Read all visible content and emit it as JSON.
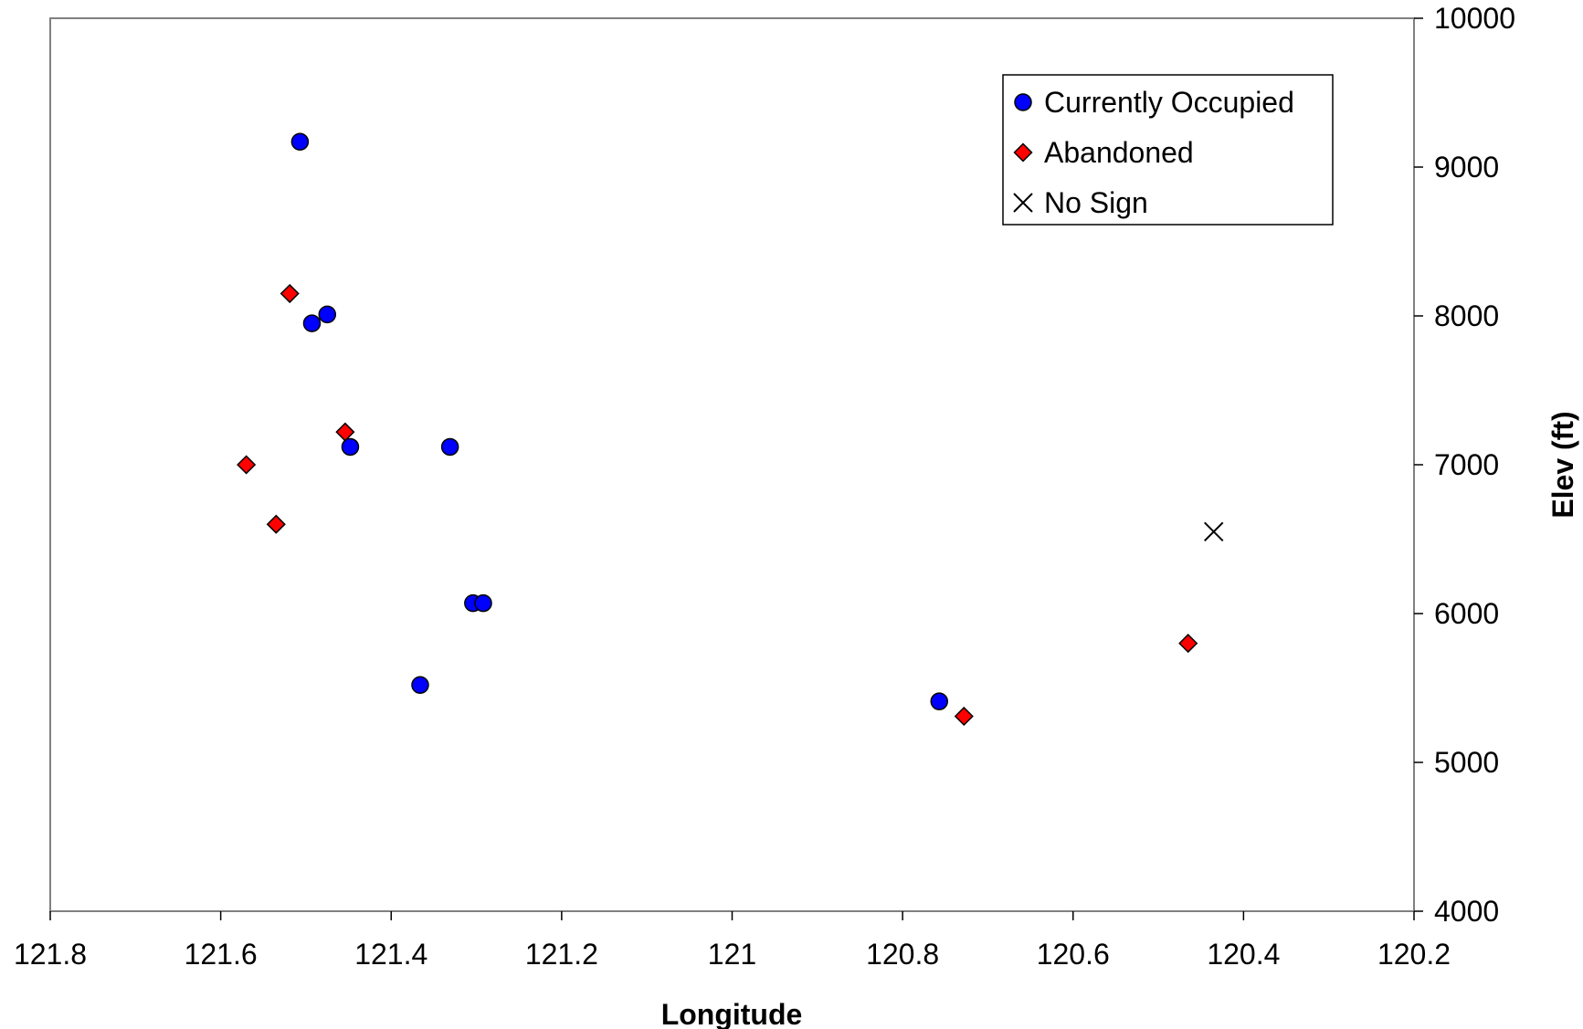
{
  "chart_data": {
    "type": "scatter",
    "title": "",
    "xlabel": "Longitude",
    "ylabel": "Elev (ft)",
    "xlim": [
      121.8,
      120.2
    ],
    "ylim": [
      4000,
      10000
    ],
    "x_reversed": true,
    "y_axis_side": "right",
    "x_ticks": [
      "121.8",
      "121.6",
      "121.4",
      "121.2",
      "121",
      "120.8",
      "120.6",
      "120.4",
      "120.2"
    ],
    "x_tick_values": [
      121.8,
      121.6,
      121.4,
      121.2,
      121.0,
      120.8,
      120.6,
      120.4,
      120.2
    ],
    "y_ticks": [
      "4000",
      "5000",
      "6000",
      "7000",
      "8000",
      "9000",
      "10000"
    ],
    "y_tick_values": [
      4000,
      5000,
      6000,
      7000,
      8000,
      9000,
      10000
    ],
    "grid": false,
    "legend_position": "top-right",
    "series": [
      {
        "name": "Currently Occupied",
        "marker": "circle",
        "color": "#0000FF",
        "points": [
          [
            121.507,
            9170
          ],
          [
            121.493,
            7950
          ],
          [
            121.475,
            8010
          ],
          [
            121.448,
            7120
          ],
          [
            121.331,
            7120
          ],
          [
            121.304,
            6070
          ],
          [
            121.292,
            6070
          ],
          [
            121.366,
            5520
          ],
          [
            120.757,
            5410
          ]
        ]
      },
      {
        "name": "Abandoned",
        "marker": "diamond",
        "color": "#FF0000",
        "points": [
          [
            121.519,
            8150
          ],
          [
            121.454,
            7220
          ],
          [
            121.57,
            7000
          ],
          [
            121.535,
            6600
          ],
          [
            120.728,
            5310
          ],
          [
            120.465,
            5800
          ]
        ]
      },
      {
        "name": "No Sign",
        "marker": "x",
        "color": "#000000",
        "points": [
          [
            120.435,
            6550
          ]
        ]
      }
    ]
  }
}
